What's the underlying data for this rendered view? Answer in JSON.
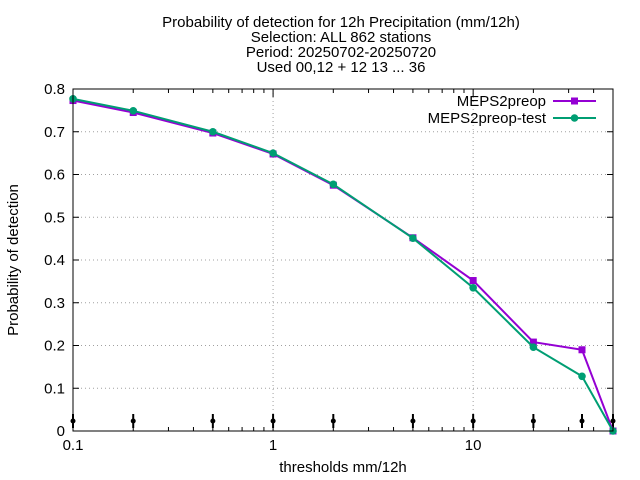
{
  "chart_data": {
    "type": "line",
    "title_lines": [
      "Probability of detection  for 12h Precipitation (mm/12h)",
      "Selection: ALL    862 stations",
      "Period: 20250702-20250720",
      "Used 00,12 + 12 13 ... 36"
    ],
    "xlabel": "thresholds mm/12h",
    "ylabel": "Probability of detection",
    "xscale": "log",
    "xlim": [
      0.1,
      50
    ],
    "ylim": [
      0,
      0.8
    ],
    "grid": true,
    "legend_position": "top-right",
    "x_tick_labels": [
      "0.1",
      "1",
      "10"
    ],
    "y_tick_labels": [
      "0",
      "0.1",
      "0.2",
      "0.3",
      "0.4",
      "0.5",
      "0.6",
      "0.7",
      "0.8"
    ],
    "x": [
      0.1,
      0.2,
      0.5,
      1,
      2,
      5,
      10,
      20,
      35,
      50
    ],
    "series": [
      {
        "name": "MEPS2preop",
        "color": "#9400d3",
        "values": [
          0.773,
          0.745,
          0.697,
          0.648,
          0.575,
          0.452,
          0.352,
          0.208,
          0.19,
          0.0
        ]
      },
      {
        "name": "MEPS2preop-test",
        "color": "#009e73",
        "values": [
          0.777,
          0.749,
          0.7,
          0.65,
          0.577,
          0.451,
          0.335,
          0.196,
          0.128,
          0.0
        ]
      }
    ],
    "sample_markers_x": [
      0.1,
      0.2,
      0.5,
      1,
      2,
      5,
      10,
      20,
      35,
      50
    ]
  }
}
